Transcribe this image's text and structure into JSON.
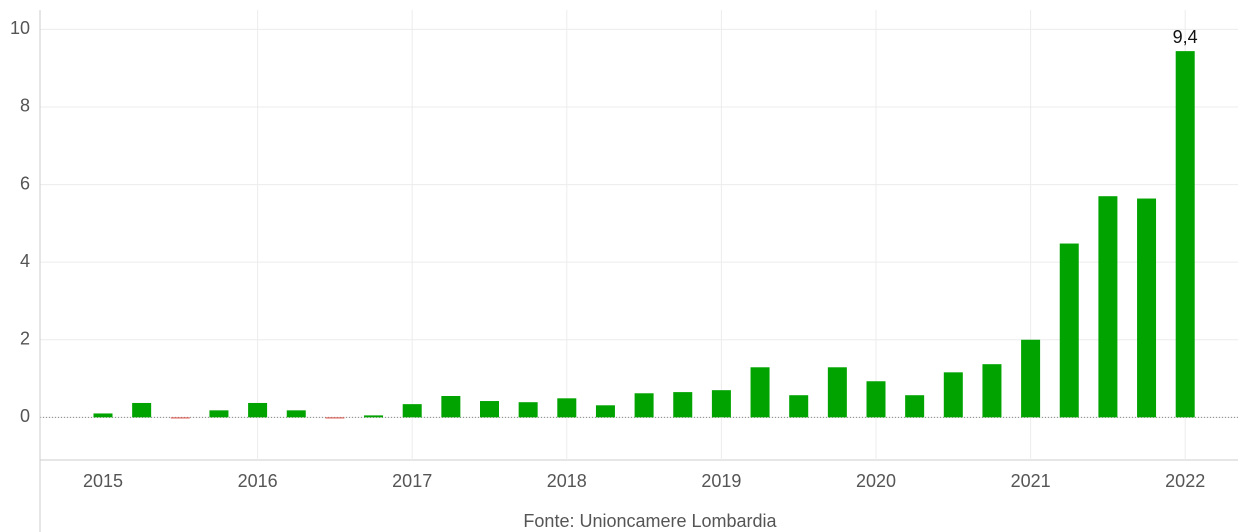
{
  "chart_data": {
    "type": "bar",
    "categories": [
      "2015",
      null,
      null,
      null,
      "2016",
      null,
      null,
      null,
      "2017",
      null,
      null,
      null,
      "2018",
      null,
      null,
      null,
      "2019",
      null,
      null,
      null,
      "2020",
      null,
      null,
      null,
      "2021",
      null,
      null,
      null,
      "2022"
    ],
    "values": [
      0.1,
      0.37,
      -0.03,
      0.18,
      0.37,
      0.18,
      -0.03,
      0.05,
      0.34,
      0.55,
      0.42,
      0.39,
      0.49,
      0.31,
      0.62,
      0.65,
      0.7,
      1.29,
      0.57,
      1.29,
      0.93,
      0.57,
      1.16,
      1.37,
      2.0,
      4.48,
      5.7,
      5.64,
      9.44
    ],
    "value_labels": [
      null,
      null,
      null,
      null,
      null,
      null,
      null,
      null,
      null,
      null,
      null,
      null,
      null,
      null,
      null,
      null,
      null,
      null,
      null,
      null,
      null,
      null,
      null,
      null,
      null,
      null,
      null,
      null,
      "9,4"
    ],
    "color": "#00a300",
    "negative_color": "#e0605a",
    "ylim": [
      -1.1,
      10.5
    ],
    "yticks": [
      0,
      2,
      4,
      6,
      8,
      10
    ],
    "grid": true,
    "source": "Fonte: Unioncamere Lombardia"
  }
}
